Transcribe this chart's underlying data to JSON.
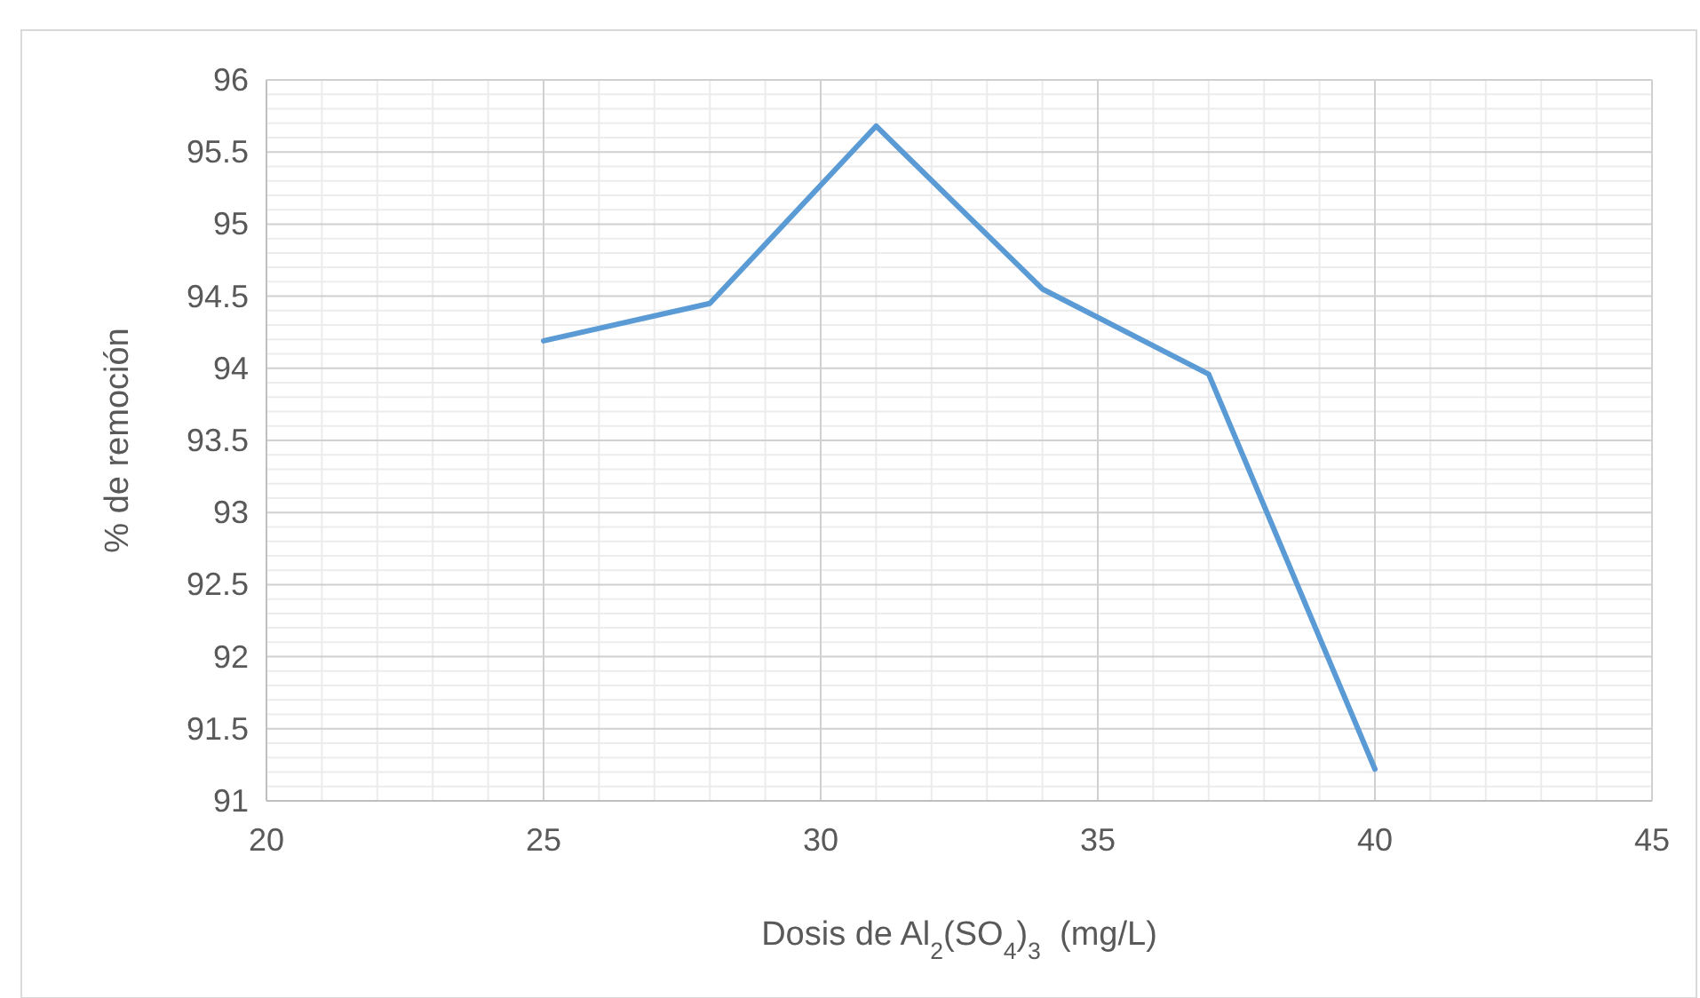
{
  "chart_data": {
    "type": "line",
    "xlabel": "Dosis de Al$_{2}$(SO$_{4}$)$_{3}$  (mg/L)",
    "ylabel": "% de remoción",
    "x": [
      25,
      28,
      31,
      34,
      37,
      40
    ],
    "series": [
      {
        "color": "#5b9bd5",
        "values": [
          94.19,
          94.45,
          95.68,
          94.55,
          93.96,
          91.22
        ]
      }
    ],
    "xlim": [
      20,
      45
    ],
    "xticks": [
      20,
      25,
      30,
      35,
      40,
      45
    ],
    "ylim": [
      91,
      96
    ],
    "yticks": [
      91,
      91.5,
      92,
      92.5,
      93,
      93.5,
      94,
      94.5,
      95,
      95.5,
      96
    ],
    "grid": true,
    "marker": "none",
    "line_style": "solid"
  }
}
